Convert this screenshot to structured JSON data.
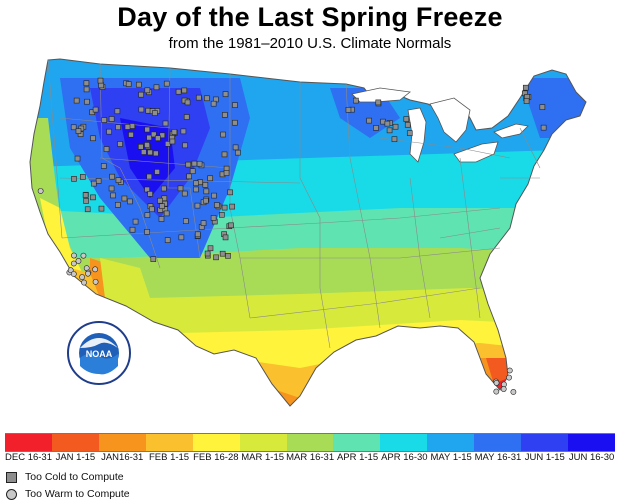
{
  "title": "Day of the Last Spring Freeze",
  "subtitle": "from the 1981–2010 U.S. Climate Normals",
  "legend": {
    "scale": [
      {
        "label": "DEC 16-31",
        "color": "#f2202a"
      },
      {
        "label": "JAN 1-15",
        "color": "#f35a1f"
      },
      {
        "label": "JAN16-31",
        "color": "#f7941d"
      },
      {
        "label": "FEB 1-15",
        "color": "#fbc02d"
      },
      {
        "label": "FEB 16-28",
        "color": "#fff33b"
      },
      {
        "label": "MAR 1-15",
        "color": "#d7ea3c"
      },
      {
        "label": "MAR 16-31",
        "color": "#a8dc57"
      },
      {
        "label": "APR 1-15",
        "color": "#5fe3b0"
      },
      {
        "label": "APR 16-30",
        "color": "#19dbe8"
      },
      {
        "label": "MAY 1-15",
        "color": "#1fa6ef"
      },
      {
        "label": "MAY 16-31",
        "color": "#2f6ff1"
      },
      {
        "label": "JUN 1-15",
        "color": "#2f3ff2"
      },
      {
        "label": "JUN 16-30",
        "color": "#1a0ff0"
      }
    ],
    "too_cold": "Too Cold to Compute",
    "too_warm": "Too Warm to Compute"
  },
  "logo": {
    "text": "NOAA",
    "icon": "noaa-logo-icon"
  }
}
